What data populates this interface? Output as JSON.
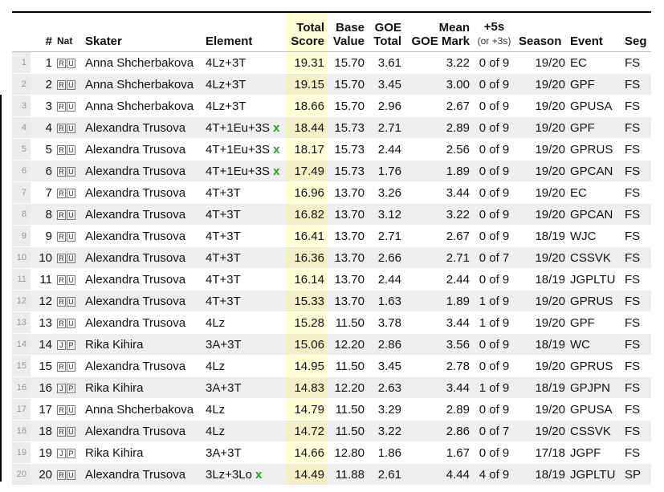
{
  "header": {
    "columns": [
      "#",
      "Nat",
      "Skater",
      "Element",
      [
        "Total",
        "Score"
      ],
      [
        "Base",
        "Value"
      ],
      [
        "GOE",
        "Total"
      ],
      [
        "Mean",
        "GOE Mark"
      ],
      [
        "+5s",
        "(or +3s)"
      ],
      "Season",
      "Event",
      "Seg"
    ]
  },
  "rows": [
    {
      "i": "1",
      "cells": [
        "1",
        [
          "R",
          "U"
        ],
        "Anna Shcherbakova",
        "4Lz+3T",
        "19.31",
        "15.70",
        "3.61",
        "3.22",
        "0 of 9",
        "19/20",
        "EC",
        "FS"
      ]
    },
    {
      "i": "2",
      "cells": [
        "2",
        [
          "R",
          "U"
        ],
        "Anna Shcherbakova",
        "4Lz+3T",
        "19.15",
        "15.70",
        "3.45",
        "3.00",
        "0 of 9",
        "19/20",
        "GPF",
        "FS"
      ]
    },
    {
      "i": "3",
      "cells": [
        "3",
        [
          "R",
          "U"
        ],
        "Anna Shcherbakova",
        "4Lz+3T",
        "18.66",
        "15.70",
        "2.96",
        "2.67",
        "0 of 9",
        "19/20",
        "GPUSA",
        "FS"
      ]
    },
    {
      "i": "4",
      "cells": [
        "4",
        [
          "R",
          "U"
        ],
        "Alexandra Trusova",
        "4T+1Eu+3S",
        "18.44",
        "15.73",
        "2.71",
        "2.89",
        "0 of 9",
        "19/20",
        "GPF",
        "FS"
      ],
      "mark": "x"
    },
    {
      "i": "5",
      "cells": [
        "5",
        [
          "R",
          "U"
        ],
        "Alexandra Trusova",
        "4T+1Eu+3S",
        "18.17",
        "15.73",
        "2.44",
        "2.56",
        "0 of 9",
        "19/20",
        "GPRUS",
        "FS"
      ],
      "mark": "x"
    },
    {
      "i": "6",
      "cells": [
        "6",
        [
          "R",
          "U"
        ],
        "Alexandra Trusova",
        "4T+1Eu+3S",
        "17.49",
        "15.73",
        "1.76",
        "1.89",
        "0 of 9",
        "19/20",
        "GPCAN",
        "FS"
      ],
      "mark": "x"
    },
    {
      "i": "7",
      "cells": [
        "7",
        [
          "R",
          "U"
        ],
        "Alexandra Trusova",
        "4T+3T",
        "16.96",
        "13.70",
        "3.26",
        "3.44",
        "0 of 9",
        "19/20",
        "EC",
        "FS"
      ]
    },
    {
      "i": "8",
      "cells": [
        "8",
        [
          "R",
          "U"
        ],
        "Alexandra Trusova",
        "4T+3T",
        "16.82",
        "13.70",
        "3.12",
        "3.22",
        "0 of 9",
        "19/20",
        "GPCAN",
        "FS"
      ]
    },
    {
      "i": "9",
      "cells": [
        "9",
        [
          "R",
          "U"
        ],
        "Alexandra Trusova",
        "4T+3T",
        "16.41",
        "13.70",
        "2.71",
        "2.67",
        "0 of 9",
        "18/19",
        "WJC",
        "FS"
      ]
    },
    {
      "i": "10",
      "cells": [
        "10",
        [
          "R",
          "U"
        ],
        "Alexandra Trusova",
        "4T+3T",
        "16.36",
        "13.70",
        "2.66",
        "2.71",
        "0 of 7",
        "19/20",
        "CSSVK",
        "FS"
      ]
    },
    {
      "i": "11",
      "cells": [
        "11",
        [
          "R",
          "U"
        ],
        "Alexandra Trusova",
        "4T+3T",
        "16.14",
        "13.70",
        "2.44",
        "2.44",
        "0 of 9",
        "18/19",
        "JGPLTU",
        "FS"
      ]
    },
    {
      "i": "12",
      "cells": [
        "12",
        [
          "R",
          "U"
        ],
        "Alexandra Trusova",
        "4T+3T",
        "15.33",
        "13.70",
        "1.63",
        "1.89",
        "1 of 9",
        "19/20",
        "GPRUS",
        "FS"
      ]
    },
    {
      "i": "13",
      "cells": [
        "13",
        [
          "R",
          "U"
        ],
        "Alexandra Trusova",
        "4Lz",
        "15.28",
        "11.50",
        "3.78",
        "3.44",
        "1 of 9",
        "19/20",
        "GPF",
        "FS"
      ]
    },
    {
      "i": "14",
      "cells": [
        "14",
        [
          "J",
          "P"
        ],
        "Rika Kihira",
        "3A+3T",
        "15.06",
        "12.20",
        "2.86",
        "3.56",
        "0 of 9",
        "18/19",
        "WC",
        "FS"
      ]
    },
    {
      "i": "15",
      "cells": [
        "15",
        [
          "R",
          "U"
        ],
        "Alexandra Trusova",
        "4Lz",
        "14.95",
        "11.50",
        "3.45",
        "2.78",
        "0 of 9",
        "19/20",
        "GPRUS",
        "FS"
      ]
    },
    {
      "i": "16",
      "cells": [
        "16",
        [
          "J",
          "P"
        ],
        "Rika Kihira",
        "3A+3T",
        "14.83",
        "12.20",
        "2.63",
        "3.44",
        "1 of 9",
        "18/19",
        "GPJPN",
        "FS"
      ]
    },
    {
      "i": "17",
      "cells": [
        "17",
        [
          "R",
          "U"
        ],
        "Anna Shcherbakova",
        "4Lz",
        "14.79",
        "11.50",
        "3.29",
        "2.89",
        "0 of 9",
        "19/20",
        "GPUSA",
        "FS"
      ]
    },
    {
      "i": "18",
      "cells": [
        "18",
        [
          "R",
          "U"
        ],
        "Alexandra Trusova",
        "4Lz",
        "14.72",
        "11.50",
        "3.22",
        "2.86",
        "0 of 7",
        "19/20",
        "CSSVK",
        "FS"
      ]
    },
    {
      "i": "19",
      "cells": [
        "19",
        [
          "J",
          "P"
        ],
        "Rika Kihira",
        "3A+3T",
        "14.66",
        "12.80",
        "1.86",
        "1.67",
        "0 of 9",
        "17/18",
        "JGPF",
        "FS"
      ]
    },
    {
      "i": "20",
      "cells": [
        "20",
        [
          "R",
          "U"
        ],
        "Alexandra Trusova",
        "3Lz+3Lo",
        "14.49",
        "11.88",
        "2.61",
        "4.44",
        "4 of 9",
        "18/19",
        "JGPLTU",
        "SP"
      ],
      "mark": "x"
    }
  ]
}
